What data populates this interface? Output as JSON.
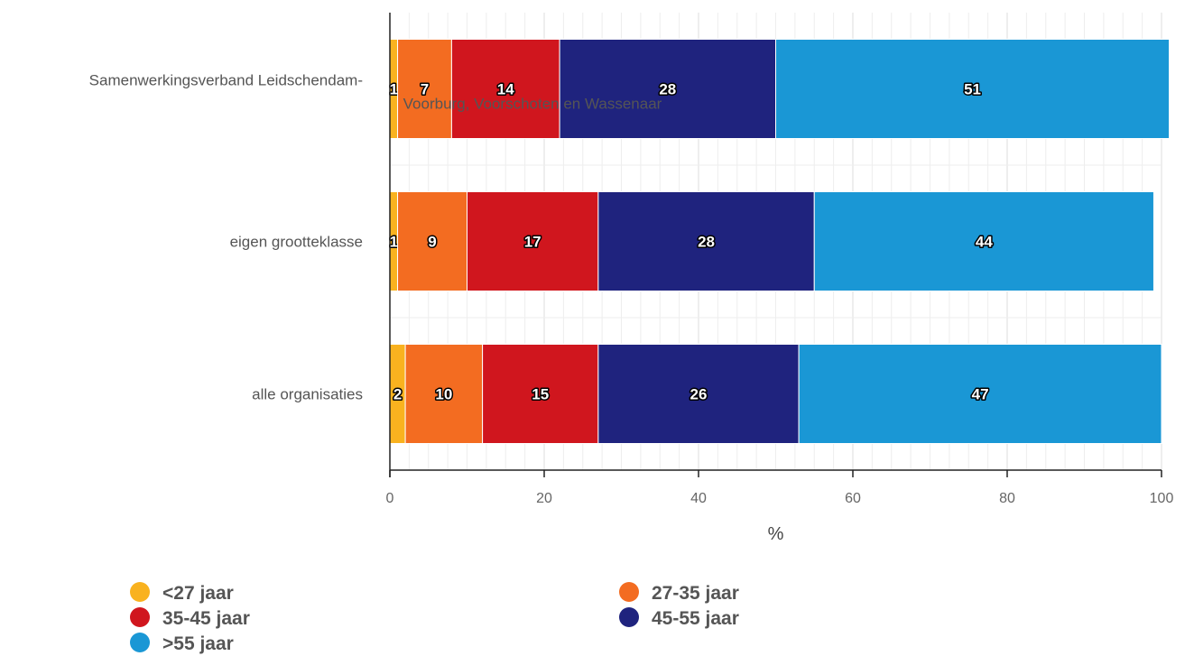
{
  "chart_data": {
    "type": "bar",
    "orientation": "horizontal",
    "stacked": true,
    "categories": [
      [
        "Samenwerkingsverband Leidschendam-",
        "Voorburg, Voorschoten en Wassenaar"
      ],
      [
        "eigen grootteklasse"
      ],
      [
        "alle organisaties"
      ]
    ],
    "series": [
      {
        "name": "<27 jaar",
        "color": "#f9b21f",
        "values": [
          1,
          1,
          2
        ]
      },
      {
        "name": "27-35 jaar",
        "color": "#f36c21",
        "values": [
          7,
          9,
          10
        ]
      },
      {
        "name": "35-45 jaar",
        "color": "#d0161e",
        "values": [
          14,
          17,
          15
        ]
      },
      {
        "name": "45-55 jaar",
        "color": "#1f237e",
        "values": [
          28,
          28,
          26
        ]
      },
      {
        "name": ">55 jaar",
        "color": "#1a97d5",
        "values": [
          51,
          44,
          47
        ]
      }
    ],
    "xlabel": "%",
    "xlim": [
      0,
      100
    ],
    "xticks": [
      0,
      20,
      40,
      60,
      80,
      100
    ],
    "grid": true,
    "legend": "bottom"
  }
}
